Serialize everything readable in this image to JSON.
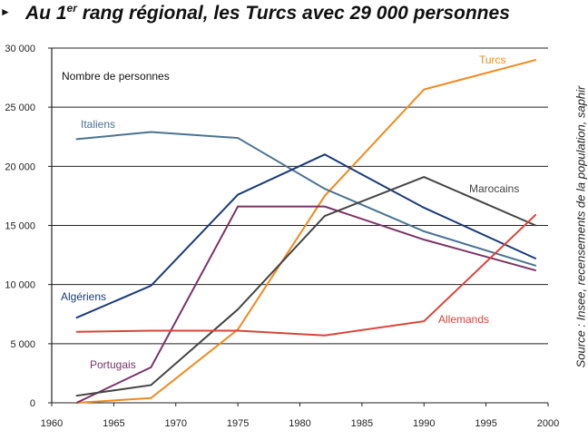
{
  "title": {
    "prefix": "Au 1",
    "sup": "er",
    "rest": " rang régional, les Turcs avec 29 000 personnes"
  },
  "source": "Source : Insee, recensements de la population, saphir",
  "chart_data": {
    "type": "line",
    "title": "Au 1er rang régional, les Turcs avec 29 000 personnes",
    "ylabel": "Nombre de personnes",
    "xlabel": "",
    "xlim": [
      1960,
      2000
    ],
    "ylim": [
      0,
      30000
    ],
    "xticks": [
      "1960",
      "1965",
      "1970",
      "1975",
      "1980",
      "1985",
      "1990",
      "1995",
      "2000"
    ],
    "yticks": [
      "0",
      "5 000",
      "10 000",
      "15 000",
      "20 000",
      "25 000",
      "30 000"
    ],
    "grid": "horizontal",
    "x": [
      1962,
      1968,
      1975,
      1982,
      1990,
      1999
    ],
    "series": [
      {
        "name": "Turcs",
        "color": "#f08a1c",
        "values": [
          0,
          400,
          6200,
          17500,
          26500,
          29000
        ]
      },
      {
        "name": "Italiens",
        "color": "#4a7391",
        "values": [
          22300,
          22900,
          22400,
          18100,
          14500,
          11600
        ]
      },
      {
        "name": "Algériens",
        "color": "#1a3a7a",
        "values": [
          7200,
          9900,
          17600,
          21000,
          16500,
          12200
        ]
      },
      {
        "name": "Portugais",
        "color": "#7a3366",
        "values": [
          0,
          3000,
          16600,
          16600,
          13800,
          11200
        ]
      },
      {
        "name": "Marocains",
        "color": "#444444",
        "values": [
          600,
          1500,
          7900,
          15800,
          19100,
          15000
        ]
      },
      {
        "name": "Allemands",
        "color": "#d9453a",
        "values": [
          6000,
          6100,
          6100,
          5700,
          6900,
          15900
        ]
      }
    ]
  }
}
